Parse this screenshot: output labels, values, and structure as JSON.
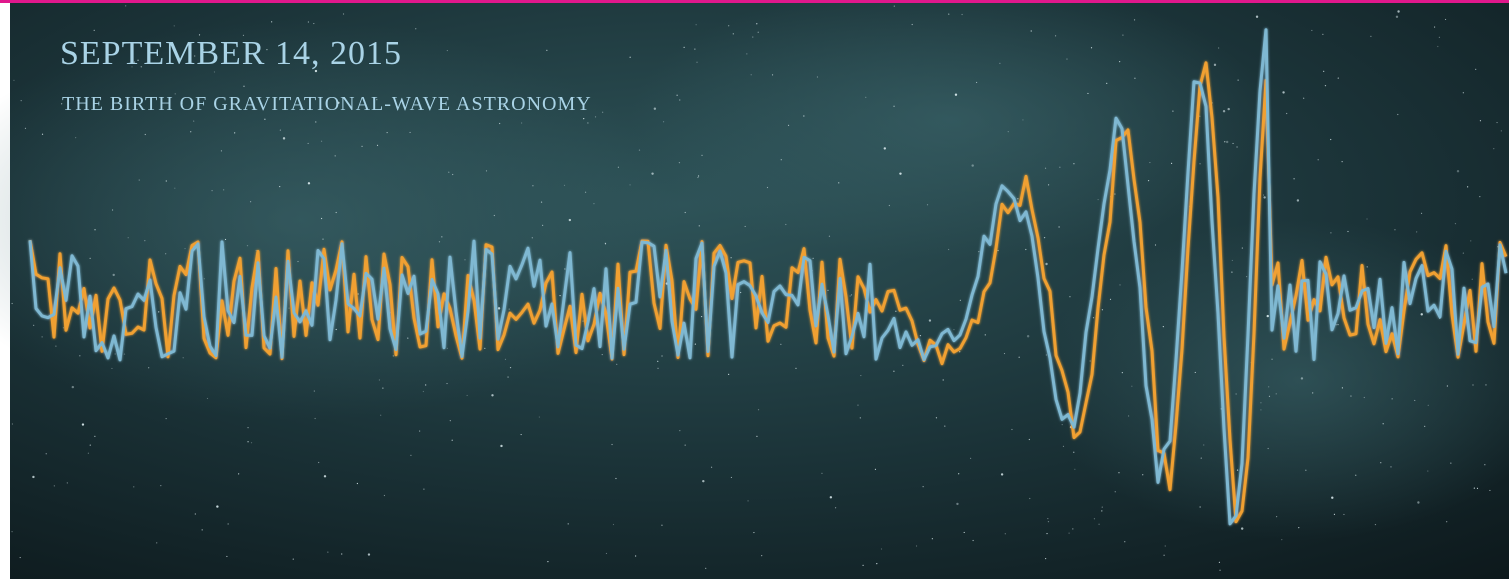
{
  "header": {
    "title": "SEPTEMBER 14, 2015",
    "subtitle": "THE BIRTH OF GRAVITATIONAL-WAVE ASTRONOMY"
  }
}
